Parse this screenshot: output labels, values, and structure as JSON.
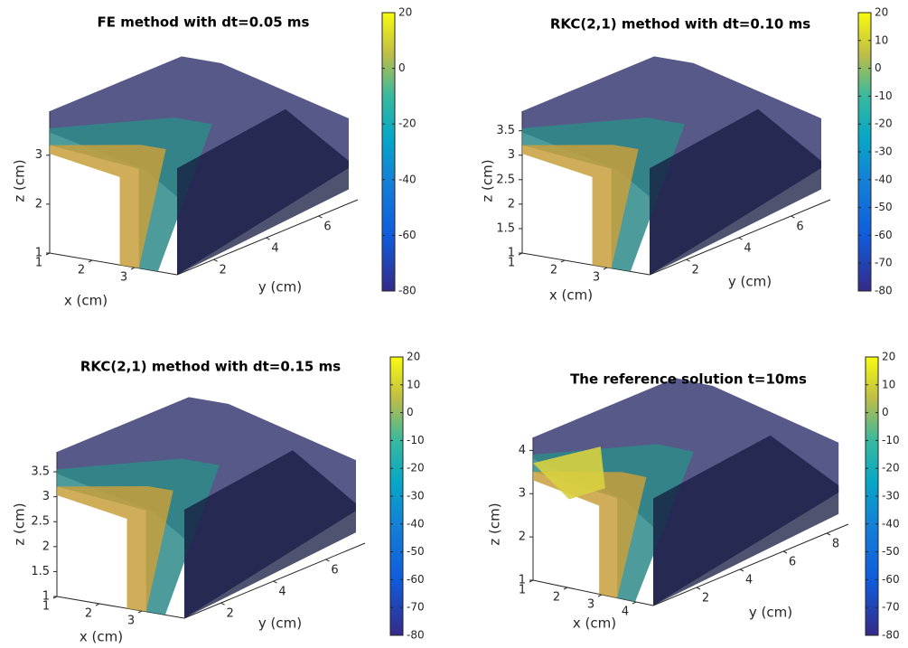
{
  "chart_data": [
    {
      "type": "isosurface3d",
      "title": "FE method with dt=0.05 ms",
      "xlabel": "x (cm)",
      "ylabel": "y (cm)",
      "zlabel": "z (cm)",
      "xlim": [
        1,
        4
      ],
      "ylim": [
        0.6,
        7.5
      ],
      "zlim": [
        1,
        3.9
      ],
      "xticks": [
        1,
        2,
        3
      ],
      "yticks": [
        2,
        4,
        6
      ],
      "zticks": [
        1,
        2,
        3
      ],
      "clim": [
        -80,
        20
      ],
      "cticks": [
        20,
        0,
        -20,
        -40,
        -60,
        -80
      ]
    },
    {
      "type": "isosurface3d",
      "title": "RKC(2,1) method with dt=0.10 ms",
      "xlabel": "x (cm)",
      "ylabel": "y (cm)",
      "zlabel": "z (cm)",
      "xlim": [
        1,
        4
      ],
      "ylim": [
        0.6,
        7.5
      ],
      "zlim": [
        1,
        3.9
      ],
      "xticks": [
        1,
        2,
        3
      ],
      "yticks": [
        2,
        4,
        6
      ],
      "zticks": [
        1,
        1.5,
        2,
        2.5,
        3,
        3.5
      ],
      "clim": [
        -80,
        20
      ],
      "cticks": [
        20,
        10,
        0,
        -10,
        -20,
        -30,
        -40,
        -50,
        -60,
        -70,
        -80
      ]
    },
    {
      "type": "isosurface3d",
      "title": "RKC(2,1) method with dt=0.15 ms",
      "xlabel": "x (cm)",
      "ylabel": "y (cm)",
      "zlabel": "z (cm)",
      "xlim": [
        1,
        4
      ],
      "ylim": [
        0.6,
        7.5
      ],
      "zlim": [
        1,
        3.9
      ],
      "xticks": [
        1,
        2,
        3
      ],
      "yticks": [
        2,
        4,
        6
      ],
      "zticks": [
        1,
        1.5,
        2,
        2.5,
        3,
        3.5
      ],
      "clim": [
        -80,
        20
      ],
      "cticks": [
        20,
        10,
        0,
        -10,
        -20,
        -30,
        -40,
        -50,
        -60,
        -70,
        -80
      ]
    },
    {
      "type": "isosurface3d",
      "title": "The reference solution t=10ms",
      "xlabel": "x (cm)",
      "ylabel": "y (cm)",
      "zlabel": "z (cm)",
      "xlim": [
        1,
        4.5
      ],
      "ylim": [
        0,
        9
      ],
      "zlim": [
        1,
        4.3
      ],
      "xticks": [
        1,
        2,
        3,
        4
      ],
      "yticks": [
        2,
        4,
        6,
        8
      ],
      "zticks": [
        1,
        2,
        3,
        4
      ],
      "clim": [
        -80,
        20
      ],
      "cticks": [
        20,
        10,
        0,
        -10,
        -20,
        -30,
        -40,
        -50,
        -60,
        -70,
        -80
      ]
    }
  ]
}
